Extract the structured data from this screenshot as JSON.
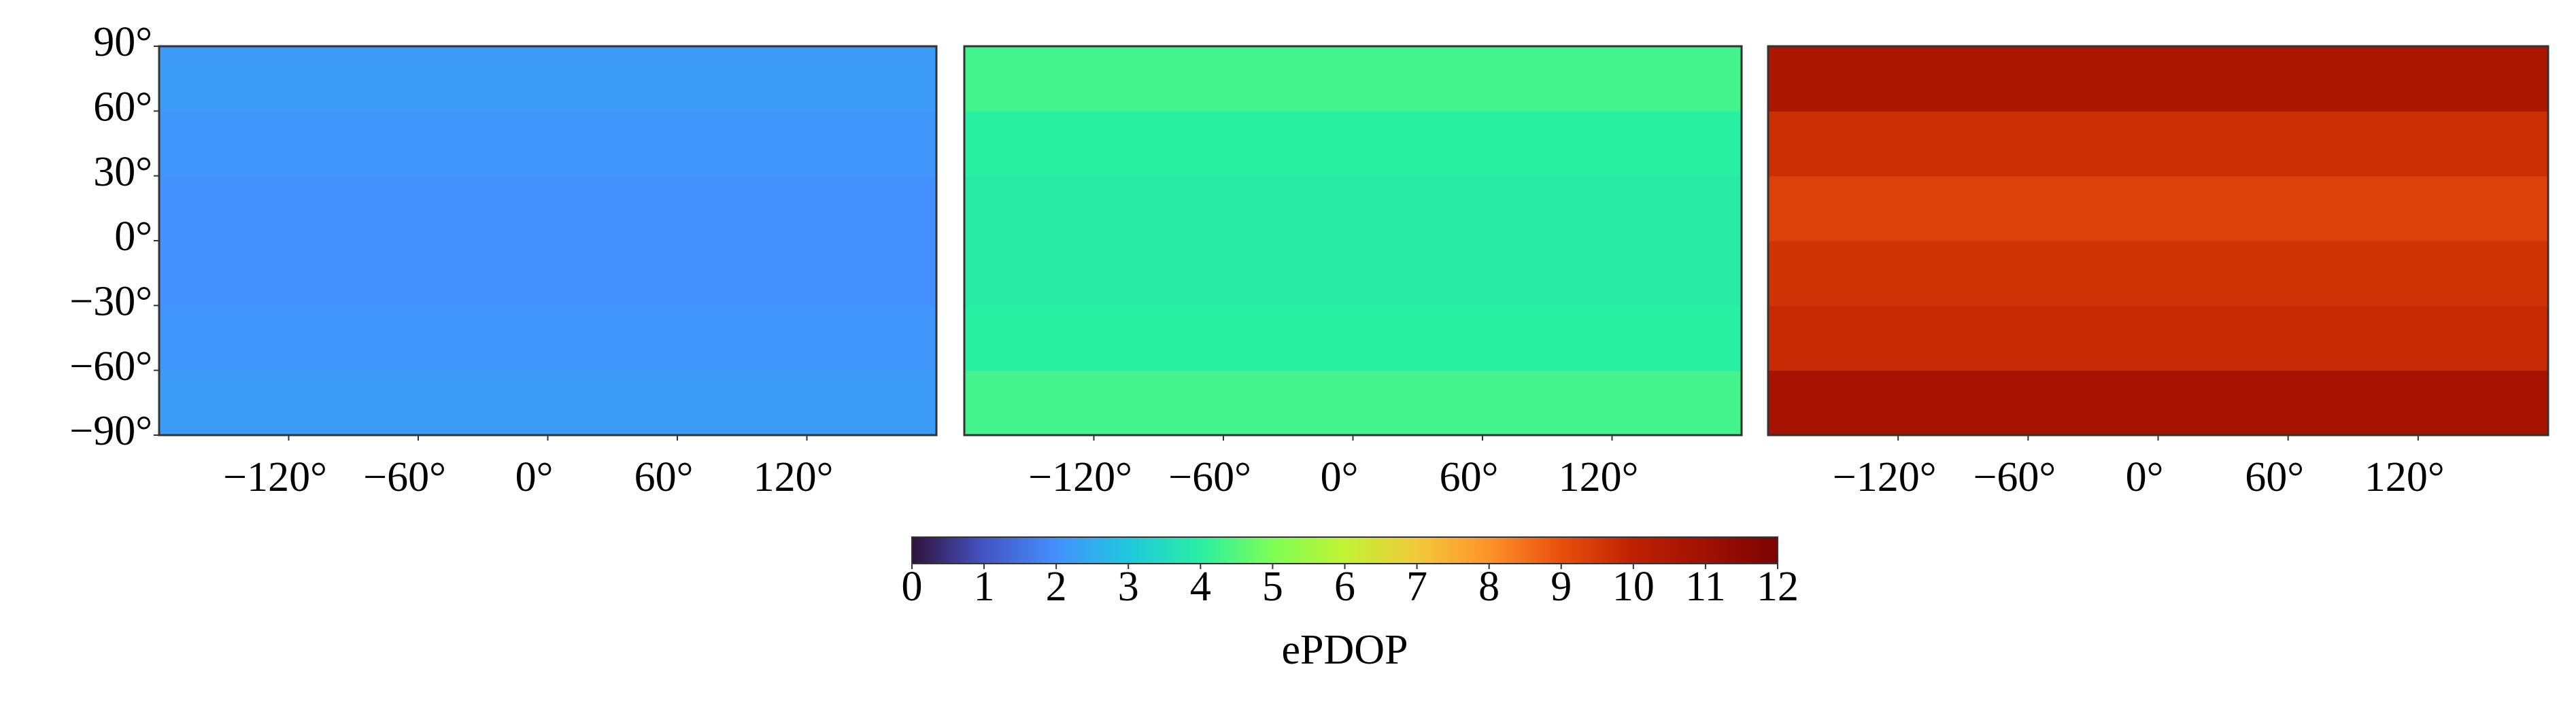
{
  "chart_data": {
    "type": "heatmap",
    "xlim": [
      -180,
      180
    ],
    "ylim": [
      -90,
      90
    ],
    "xticks": [
      {
        "value": -120,
        "label": "−120°"
      },
      {
        "value": -60,
        "label": "−60°"
      },
      {
        "value": 0,
        "label": "0°"
      },
      {
        "value": 60,
        "label": "60°"
      },
      {
        "value": 120,
        "label": "120°"
      }
    ],
    "yticks": [
      {
        "value": -90,
        "label": "−90°"
      },
      {
        "value": -60,
        "label": "−60°"
      },
      {
        "value": -30,
        "label": "−30°"
      },
      {
        "value": 0,
        "label": "0°"
      },
      {
        "value": 30,
        "label": "30°"
      },
      {
        "value": 60,
        "label": "60°"
      },
      {
        "value": 90,
        "label": "90°"
      }
    ],
    "panels": [
      {
        "values": [
          2.2,
          2.1,
          2.0,
          2.0,
          2.1,
          2.2
        ]
      },
      {
        "values": [
          4.3,
          4.0,
          3.9,
          3.9,
          4.0,
          4.3
        ]
      },
      {
        "values": [
          10.8,
          9.8,
          9.6,
          9.3,
          9.7,
          10.6
        ]
      }
    ],
    "colorscale": [
      "#30123b",
      "#4454c4",
      "#4490fe",
      "#1fc8de",
      "#29efa2",
      "#7dff56",
      "#c1f334",
      "#f1ca3a",
      "#fe922a",
      "#ea4f0d",
      "#be2102",
      "#a01101",
      "#7a0403"
    ],
    "colorbar": {
      "label": "ePDOP",
      "lim": [
        0,
        12
      ],
      "ticks": [
        0,
        1,
        2,
        3,
        4,
        5,
        6,
        7,
        8,
        9,
        10,
        11,
        12
      ]
    }
  }
}
